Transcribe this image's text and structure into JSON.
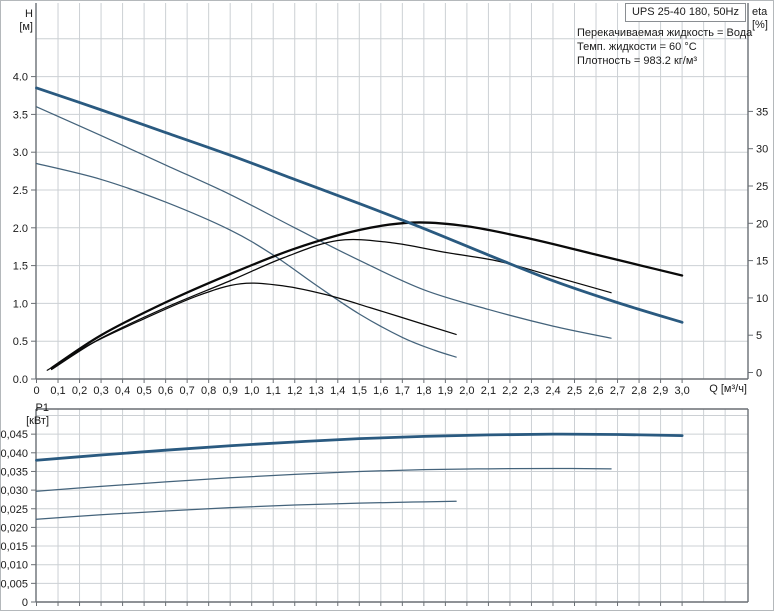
{
  "title_box": {
    "label": "UPS 25-40 180, 50Hz"
  },
  "info": {
    "line1": "Перекачиваемая жидкость = Вода",
    "line2": "Темп. жидкости = 60 °C",
    "line3": "Плотность = 983.2 кг/м³"
  },
  "axis_labels": {
    "head_top": "H",
    "head_unit": "[м]",
    "eta_top": "eta",
    "eta_unit": "[%]",
    "power_top": "P1",
    "power_unit": "[кВт]",
    "flow": "Q [м³/ч]"
  },
  "colors": {
    "curve_blue_thick": "#2a5a80",
    "curve_blue_thin": "#44637b",
    "curve_black": "#0a0a0a",
    "grid": "#ccd0d4",
    "axis": "#6a6f74",
    "border": "#b4b8bb",
    "text": "#1b1b1b"
  },
  "chart_data": [
    {
      "type": "line",
      "name": "pump-performance-chart",
      "title": "UPS 25-40 180, 50Hz",
      "grid": true,
      "legend_position": "none",
      "x_axis": {
        "label": "Q [м³/ч]",
        "min": 0,
        "max": 3.3,
        "tick_step": 0.1,
        "tick_labels": [
          "0",
          "0,1",
          "0,2",
          "0,3",
          "0,4",
          "0,5",
          "0,6",
          "0,7",
          "0,8",
          "0,9",
          "1,0",
          "1,1",
          "1,2",
          "1,3",
          "1,4",
          "1,5",
          "1,6",
          "1,7",
          "1,8",
          "1,9",
          "2,0",
          "2,1",
          "2,2",
          "2,3",
          "2,4",
          "2,5",
          "2,6",
          "2,7",
          "2,8",
          "2,9",
          "3,0"
        ]
      },
      "y_axis_left": {
        "label": "H [м]",
        "min": 0,
        "max": 4.97,
        "tick_step": 0.5,
        "tick_labels": [
          "0.0",
          "0.5",
          "1.0",
          "1.5",
          "2.0",
          "2.5",
          "3.0",
          "3.5",
          "4.0"
        ]
      },
      "y_axis_right": {
        "label": "eta [%]",
        "min": 0,
        "max": 49.5,
        "tick_step": 5,
        "tick_labels": [
          "0",
          "5",
          "10",
          "15",
          "20",
          "25",
          "30",
          "35"
        ]
      },
      "series": [
        {
          "name": "pump-curve-speed1",
          "axis": "H",
          "thick": false,
          "color": "curve_blue_thin",
          "points": [
            [
              0,
              2.85
            ],
            [
              0.3,
              2.64
            ],
            [
              0.6,
              2.34
            ],
            [
              0.9,
              1.97
            ],
            [
              1.1,
              1.64
            ],
            [
              1.3,
              1.24
            ],
            [
              1.5,
              0.86
            ],
            [
              1.7,
              0.55
            ],
            [
              1.85,
              0.38
            ],
            [
              1.95,
              0.29
            ]
          ]
        },
        {
          "name": "pump-curve-speed2",
          "axis": "H",
          "thick": false,
          "color": "curve_blue_thin",
          "points": [
            [
              0,
              3.6
            ],
            [
              0.3,
              3.22
            ],
            [
              0.6,
              2.83
            ],
            [
              0.9,
              2.44
            ],
            [
              1.2,
              2.0
            ],
            [
              1.5,
              1.57
            ],
            [
              1.8,
              1.18
            ],
            [
              2.1,
              0.92
            ],
            [
              2.4,
              0.7
            ],
            [
              2.67,
              0.54
            ]
          ]
        },
        {
          "name": "eta-curve-speed1",
          "axis": "eta",
          "thick": false,
          "color": "curve_black",
          "points": [
            [
              0.05,
              0.3
            ],
            [
              0.25,
              3.8
            ],
            [
              0.5,
              7.2
            ],
            [
              0.75,
              10.3
            ],
            [
              0.95,
              11.9
            ],
            [
              1.15,
              11.6
            ],
            [
              1.35,
              10.4
            ],
            [
              1.55,
              8.7
            ],
            [
              1.75,
              6.9
            ],
            [
              1.95,
              5.1
            ]
          ]
        },
        {
          "name": "eta-curve-speed2",
          "axis": "eta",
          "thick": false,
          "color": "curve_black",
          "points": [
            [
              0.07,
              0.4
            ],
            [
              0.3,
              4.6
            ],
            [
              0.6,
              8.7
            ],
            [
              0.9,
              12.3
            ],
            [
              1.15,
              15.4
            ],
            [
              1.4,
              17.7
            ],
            [
              1.65,
              17.4
            ],
            [
              1.9,
              16.1
            ],
            [
              2.15,
              14.9
            ],
            [
              2.4,
              12.9
            ],
            [
              2.67,
              10.7
            ]
          ]
        },
        {
          "name": "eta-curve-speed3",
          "axis": "eta",
          "thick": true,
          "color": "curve_black",
          "points": [
            [
              0.07,
              0.6
            ],
            [
              0.3,
              5.0
            ],
            [
              0.6,
              9.4
            ],
            [
              0.9,
              13.2
            ],
            [
              1.2,
              16.6
            ],
            [
              1.5,
              19.1
            ],
            [
              1.75,
              20.1
            ],
            [
              2.0,
              19.6
            ],
            [
              2.3,
              17.9
            ],
            [
              2.6,
              15.8
            ],
            [
              2.8,
              14.4
            ],
            [
              3.0,
              13.0
            ]
          ]
        },
        {
          "name": "pump-curve-speed3",
          "axis": "H",
          "thick": true,
          "color": "curve_blue_thick",
          "points": [
            [
              0,
              3.85
            ],
            [
              0.3,
              3.56
            ],
            [
              0.6,
              3.26
            ],
            [
              0.9,
              2.96
            ],
            [
              1.2,
              2.64
            ],
            [
              1.5,
              2.32
            ],
            [
              1.8,
              1.99
            ],
            [
              2.1,
              1.64
            ],
            [
              2.4,
              1.3
            ],
            [
              2.7,
              1.01
            ],
            [
              3.0,
              0.75
            ]
          ]
        }
      ]
    },
    {
      "type": "line",
      "name": "power-input-chart",
      "grid": true,
      "x_axis": {
        "min": 0,
        "max": 3.3,
        "tick_step": 0.1,
        "tick_labels": []
      },
      "y_axis_left": {
        "label": "P1 [кВт]",
        "min": 0,
        "max": 0.0517,
        "tick_step": 0.005,
        "tick_labels": [
          "0",
          "0,005",
          "0,010",
          "0,015",
          "0,020",
          "0,025",
          "0,030",
          "0,035",
          "0,040",
          "0,045"
        ]
      },
      "series": [
        {
          "name": "p1-curve-speed1",
          "axis": "P",
          "thick": false,
          "color": "curve_blue_thin",
          "points": [
            [
              0,
              0.0222
            ],
            [
              0.3,
              0.0234
            ],
            [
              0.6,
              0.0244
            ],
            [
              0.9,
              0.0253
            ],
            [
              1.2,
              0.026
            ],
            [
              1.5,
              0.0265
            ],
            [
              1.75,
              0.0268
            ],
            [
              1.95,
              0.027
            ]
          ]
        },
        {
          "name": "p1-curve-speed2",
          "axis": "P",
          "thick": false,
          "color": "curve_blue_thin",
          "points": [
            [
              0,
              0.0297
            ],
            [
              0.3,
              0.031
            ],
            [
              0.6,
              0.0322
            ],
            [
              0.9,
              0.0333
            ],
            [
              1.2,
              0.0342
            ],
            [
              1.5,
              0.035
            ],
            [
              1.8,
              0.0355
            ],
            [
              2.1,
              0.0357
            ],
            [
              2.4,
              0.0358
            ],
            [
              2.67,
              0.0357
            ]
          ]
        },
        {
          "name": "p1-curve-speed3",
          "axis": "P",
          "thick": true,
          "color": "curve_blue_thick",
          "points": [
            [
              0,
              0.038
            ],
            [
              0.3,
              0.0394
            ],
            [
              0.6,
              0.0407
            ],
            [
              0.9,
              0.0419
            ],
            [
              1.2,
              0.0429
            ],
            [
              1.5,
              0.0438
            ],
            [
              1.8,
              0.0444
            ],
            [
              2.1,
              0.0448
            ],
            [
              2.4,
              0.045
            ],
            [
              2.7,
              0.0449
            ],
            [
              3.0,
              0.0446
            ]
          ]
        }
      ]
    }
  ]
}
